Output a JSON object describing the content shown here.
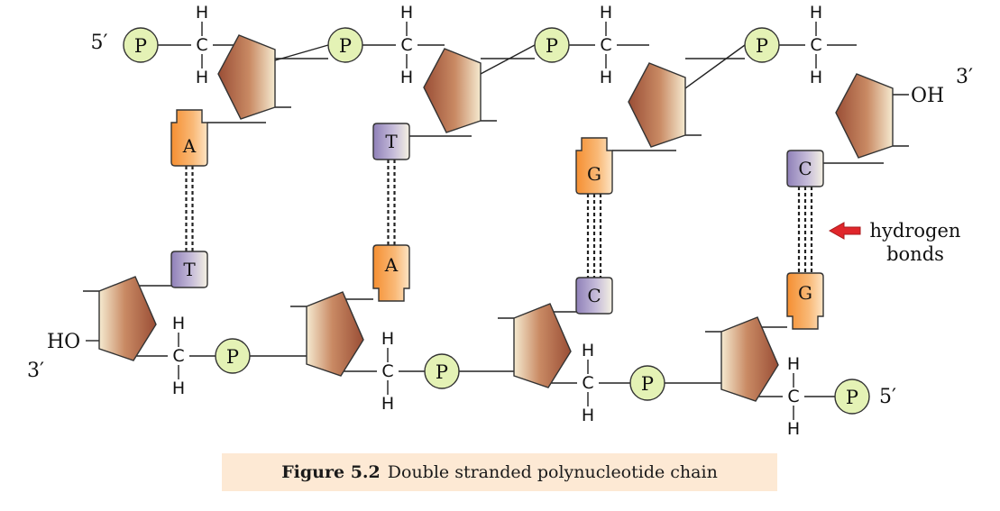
{
  "strand_top": {
    "five_prime_label": "5′",
    "three_prime_label": "3′",
    "terminal_group": "OH",
    "phosphate_label": "P",
    "carbon_label": "C",
    "hydrogen_label": "H"
  },
  "strand_bottom": {
    "five_prime_label": "5′",
    "three_prime_label": "3′",
    "terminal_group": "HO",
    "phosphate_label": "P",
    "carbon_label": "C",
    "hydrogen_label": "H"
  },
  "base_pairs": [
    {
      "top": "A",
      "bottom": "T",
      "hydrogen_bonds": 2
    },
    {
      "top": "T",
      "bottom": "A",
      "hydrogen_bonds": 2
    },
    {
      "top": "G",
      "bottom": "C",
      "hydrogen_bonds": 3
    },
    {
      "top": "C",
      "bottom": "G",
      "hydrogen_bonds": 3
    }
  ],
  "annotation": {
    "line1": "hydrogen",
    "line2": "bonds"
  },
  "caption": {
    "label": "Figure 5.2",
    "text": "Double stranded polynucleotide chain"
  },
  "colors": {
    "phosphate_fill": "#e4f2b5",
    "purine_fill": "#f7a552",
    "pyrimidine_fill": "#a89bc6",
    "sugar_dark": "#9a4e36",
    "sugar_light": "#f3e6c8",
    "arrow": "#e0262b",
    "caption_bg": "#fde9d4"
  }
}
